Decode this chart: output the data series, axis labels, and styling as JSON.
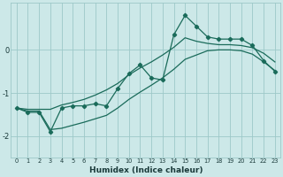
{
  "xlabel": "Humidex (Indice chaleur)",
  "ylabel": "",
  "background_color": "#cce8e8",
  "grid_color": "#9dc8c8",
  "line_color": "#1a6b5a",
  "x_data": [
    0,
    1,
    2,
    3,
    4,
    5,
    6,
    7,
    8,
    9,
    10,
    11,
    12,
    13,
    14,
    15,
    16,
    17,
    18,
    19,
    20,
    21,
    22,
    23
  ],
  "y_main": [
    -1.35,
    -1.45,
    -1.45,
    -1.9,
    -1.35,
    -1.3,
    -1.3,
    -1.25,
    -1.3,
    -0.9,
    -0.55,
    -0.35,
    -0.65,
    -0.7,
    0.35,
    0.8,
    0.55,
    0.3,
    0.25,
    0.25,
    0.25,
    0.1,
    -0.25,
    -0.5
  ],
  "y_upper": [
    -1.35,
    -1.38,
    -1.38,
    -1.38,
    -1.28,
    -1.22,
    -1.15,
    -1.05,
    -0.93,
    -0.78,
    -0.58,
    -0.42,
    -0.28,
    -0.12,
    0.06,
    0.28,
    0.2,
    0.15,
    0.12,
    0.12,
    0.1,
    0.05,
    -0.08,
    -0.28
  ],
  "y_lower": [
    -1.35,
    -1.42,
    -1.42,
    -1.85,
    -1.82,
    -1.75,
    -1.68,
    -1.6,
    -1.52,
    -1.35,
    -1.15,
    -0.98,
    -0.82,
    -0.65,
    -0.45,
    -0.22,
    -0.12,
    -0.02,
    0.0,
    0.0,
    -0.02,
    -0.1,
    -0.28,
    -0.48
  ],
  "ylim": [
    -2.5,
    1.1
  ],
  "xlim": [
    -0.5,
    23.5
  ],
  "yticks": [
    -2,
    -1,
    0
  ],
  "xticks": [
    0,
    1,
    2,
    3,
    4,
    5,
    6,
    7,
    8,
    9,
    10,
    11,
    12,
    13,
    14,
    15,
    16,
    17,
    18,
    19,
    20,
    21,
    22,
    23
  ]
}
